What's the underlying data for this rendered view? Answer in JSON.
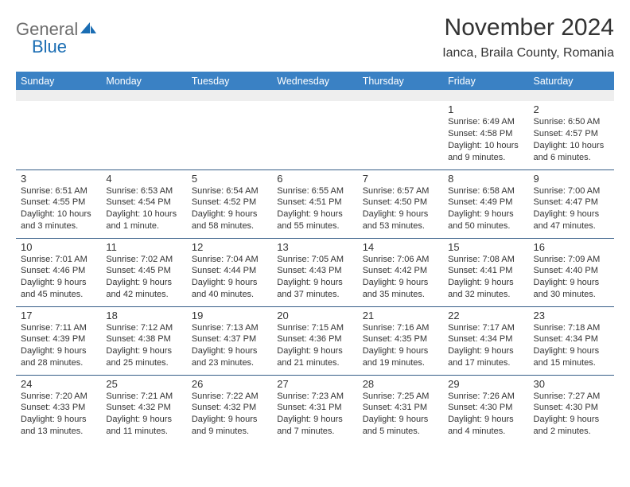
{
  "brand": {
    "general": "General",
    "blue": "Blue"
  },
  "title": "November 2024",
  "location": "Ianca, Braila County, Romania",
  "day_names": [
    "Sunday",
    "Monday",
    "Tuesday",
    "Wednesday",
    "Thursday",
    "Friday",
    "Saturday"
  ],
  "colors": {
    "header_bg": "#3a81c4",
    "header_text": "#ffffff",
    "row_divider": "#355d87",
    "spacer_bg": "#eeeeee",
    "text": "#333333",
    "logo_gray": "#6d6d6d",
    "logo_blue": "#1a6db3"
  },
  "weeks": [
    [
      {
        "n": "",
        "sr": "",
        "ss": "",
        "dl": ""
      },
      {
        "n": "",
        "sr": "",
        "ss": "",
        "dl": ""
      },
      {
        "n": "",
        "sr": "",
        "ss": "",
        "dl": ""
      },
      {
        "n": "",
        "sr": "",
        "ss": "",
        "dl": ""
      },
      {
        "n": "",
        "sr": "",
        "ss": "",
        "dl": ""
      },
      {
        "n": "1",
        "sr": "Sunrise: 6:49 AM",
        "ss": "Sunset: 4:58 PM",
        "dl": "Daylight: 10 hours and 9 minutes."
      },
      {
        "n": "2",
        "sr": "Sunrise: 6:50 AM",
        "ss": "Sunset: 4:57 PM",
        "dl": "Daylight: 10 hours and 6 minutes."
      }
    ],
    [
      {
        "n": "3",
        "sr": "Sunrise: 6:51 AM",
        "ss": "Sunset: 4:55 PM",
        "dl": "Daylight: 10 hours and 3 minutes."
      },
      {
        "n": "4",
        "sr": "Sunrise: 6:53 AM",
        "ss": "Sunset: 4:54 PM",
        "dl": "Daylight: 10 hours and 1 minute."
      },
      {
        "n": "5",
        "sr": "Sunrise: 6:54 AM",
        "ss": "Sunset: 4:52 PM",
        "dl": "Daylight: 9 hours and 58 minutes."
      },
      {
        "n": "6",
        "sr": "Sunrise: 6:55 AM",
        "ss": "Sunset: 4:51 PM",
        "dl": "Daylight: 9 hours and 55 minutes."
      },
      {
        "n": "7",
        "sr": "Sunrise: 6:57 AM",
        "ss": "Sunset: 4:50 PM",
        "dl": "Daylight: 9 hours and 53 minutes."
      },
      {
        "n": "8",
        "sr": "Sunrise: 6:58 AM",
        "ss": "Sunset: 4:49 PM",
        "dl": "Daylight: 9 hours and 50 minutes."
      },
      {
        "n": "9",
        "sr": "Sunrise: 7:00 AM",
        "ss": "Sunset: 4:47 PM",
        "dl": "Daylight: 9 hours and 47 minutes."
      }
    ],
    [
      {
        "n": "10",
        "sr": "Sunrise: 7:01 AM",
        "ss": "Sunset: 4:46 PM",
        "dl": "Daylight: 9 hours and 45 minutes."
      },
      {
        "n": "11",
        "sr": "Sunrise: 7:02 AM",
        "ss": "Sunset: 4:45 PM",
        "dl": "Daylight: 9 hours and 42 minutes."
      },
      {
        "n": "12",
        "sr": "Sunrise: 7:04 AM",
        "ss": "Sunset: 4:44 PM",
        "dl": "Daylight: 9 hours and 40 minutes."
      },
      {
        "n": "13",
        "sr": "Sunrise: 7:05 AM",
        "ss": "Sunset: 4:43 PM",
        "dl": "Daylight: 9 hours and 37 minutes."
      },
      {
        "n": "14",
        "sr": "Sunrise: 7:06 AM",
        "ss": "Sunset: 4:42 PM",
        "dl": "Daylight: 9 hours and 35 minutes."
      },
      {
        "n": "15",
        "sr": "Sunrise: 7:08 AM",
        "ss": "Sunset: 4:41 PM",
        "dl": "Daylight: 9 hours and 32 minutes."
      },
      {
        "n": "16",
        "sr": "Sunrise: 7:09 AM",
        "ss": "Sunset: 4:40 PM",
        "dl": "Daylight: 9 hours and 30 minutes."
      }
    ],
    [
      {
        "n": "17",
        "sr": "Sunrise: 7:11 AM",
        "ss": "Sunset: 4:39 PM",
        "dl": "Daylight: 9 hours and 28 minutes."
      },
      {
        "n": "18",
        "sr": "Sunrise: 7:12 AM",
        "ss": "Sunset: 4:38 PM",
        "dl": "Daylight: 9 hours and 25 minutes."
      },
      {
        "n": "19",
        "sr": "Sunrise: 7:13 AM",
        "ss": "Sunset: 4:37 PM",
        "dl": "Daylight: 9 hours and 23 minutes."
      },
      {
        "n": "20",
        "sr": "Sunrise: 7:15 AM",
        "ss": "Sunset: 4:36 PM",
        "dl": "Daylight: 9 hours and 21 minutes."
      },
      {
        "n": "21",
        "sr": "Sunrise: 7:16 AM",
        "ss": "Sunset: 4:35 PM",
        "dl": "Daylight: 9 hours and 19 minutes."
      },
      {
        "n": "22",
        "sr": "Sunrise: 7:17 AM",
        "ss": "Sunset: 4:34 PM",
        "dl": "Daylight: 9 hours and 17 minutes."
      },
      {
        "n": "23",
        "sr": "Sunrise: 7:18 AM",
        "ss": "Sunset: 4:34 PM",
        "dl": "Daylight: 9 hours and 15 minutes."
      }
    ],
    [
      {
        "n": "24",
        "sr": "Sunrise: 7:20 AM",
        "ss": "Sunset: 4:33 PM",
        "dl": "Daylight: 9 hours and 13 minutes."
      },
      {
        "n": "25",
        "sr": "Sunrise: 7:21 AM",
        "ss": "Sunset: 4:32 PM",
        "dl": "Daylight: 9 hours and 11 minutes."
      },
      {
        "n": "26",
        "sr": "Sunrise: 7:22 AM",
        "ss": "Sunset: 4:32 PM",
        "dl": "Daylight: 9 hours and 9 minutes."
      },
      {
        "n": "27",
        "sr": "Sunrise: 7:23 AM",
        "ss": "Sunset: 4:31 PM",
        "dl": "Daylight: 9 hours and 7 minutes."
      },
      {
        "n": "28",
        "sr": "Sunrise: 7:25 AM",
        "ss": "Sunset: 4:31 PM",
        "dl": "Daylight: 9 hours and 5 minutes."
      },
      {
        "n": "29",
        "sr": "Sunrise: 7:26 AM",
        "ss": "Sunset: 4:30 PM",
        "dl": "Daylight: 9 hours and 4 minutes."
      },
      {
        "n": "30",
        "sr": "Sunrise: 7:27 AM",
        "ss": "Sunset: 4:30 PM",
        "dl": "Daylight: 9 hours and 2 minutes."
      }
    ]
  ]
}
